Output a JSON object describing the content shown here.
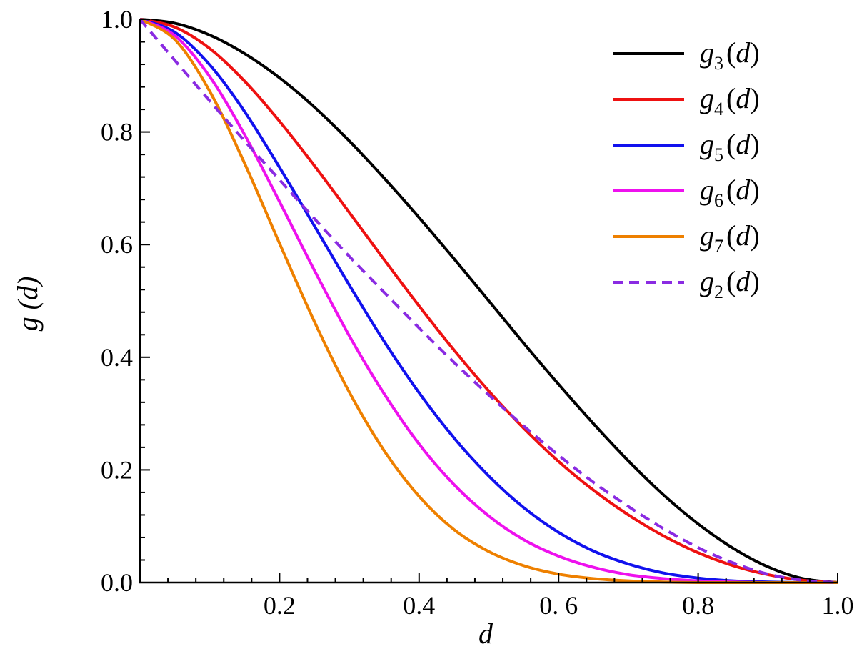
{
  "chart_data": {
    "type": "line",
    "title": "",
    "xlabel": "d",
    "ylabel": "g (d)",
    "xlim": [
      0,
      1
    ],
    "ylim": [
      0,
      1
    ],
    "x_ticks": [
      0.2,
      0.4,
      0.6,
      0.8,
      1.0
    ],
    "x_tick_labels": [
      "0.2",
      "0.4",
      "0. 6",
      "0.8",
      "1.0"
    ],
    "y_ticks": [
      0.0,
      0.2,
      0.4,
      0.6,
      0.8,
      1.0
    ],
    "y_tick_labels": [
      "0.0",
      "0.2",
      "0.4",
      "0.6",
      "0.8",
      "1.0"
    ],
    "grid": false,
    "legend_position": "top-right",
    "x": [
      0.0,
      0.05,
      0.1,
      0.15,
      0.2,
      0.25,
      0.3,
      0.35,
      0.4,
      0.45,
      0.5,
      0.55,
      0.6,
      0.65,
      0.7,
      0.75,
      0.8,
      0.85,
      0.9,
      0.95,
      1.0
    ],
    "series": [
      {
        "name": "g3(d)",
        "label_main": "g",
        "label_sub": "3",
        "label_arg": "(d)",
        "color": "#000000",
        "dash": "solid",
        "values": [
          1.0,
          0.993,
          0.972,
          0.939,
          0.896,
          0.844,
          0.784,
          0.718,
          0.648,
          0.575,
          0.5,
          0.425,
          0.352,
          0.282,
          0.216,
          0.156,
          0.104,
          0.061,
          0.028,
          0.007,
          0.0
        ]
      },
      {
        "name": "g4(d)",
        "label_main": "g",
        "label_sub": "4",
        "label_arg": "(d)",
        "color": "#ee1111",
        "dash": "solid",
        "values": [
          1.0,
          0.986,
          0.948,
          0.89,
          0.819,
          0.74,
          0.657,
          0.573,
          0.491,
          0.413,
          0.34,
          0.274,
          0.215,
          0.164,
          0.12,
          0.083,
          0.053,
          0.03,
          0.014,
          0.004,
          0.0
        ]
      },
      {
        "name": "g5(d)",
        "label_main": "g",
        "label_sub": "5",
        "label_arg": "(d)",
        "color": "#1111ee",
        "dash": "solid",
        "values": [
          1.0,
          0.977,
          0.919,
          0.836,
          0.737,
          0.633,
          0.528,
          0.428,
          0.337,
          0.257,
          0.189,
          0.133,
          0.089,
          0.056,
          0.033,
          0.017,
          0.008,
          0.003,
          0.001,
          0.0,
          0.0
        ]
      },
      {
        "name": "g6(d)",
        "label_main": "g",
        "label_sub": "6",
        "label_arg": "(d)",
        "color": "#ee11ee",
        "dash": "solid",
        "values": [
          1.0,
          0.971,
          0.898,
          0.795,
          0.676,
          0.554,
          0.438,
          0.335,
          0.246,
          0.174,
          0.118,
          0.076,
          0.047,
          0.027,
          0.014,
          0.007,
          0.003,
          0.001,
          0.0,
          0.0,
          0.0
        ]
      },
      {
        "name": "g7(d)",
        "label_main": "g",
        "label_sub": "7",
        "label_arg": "(d)",
        "color": "#ee8000",
        "dash": "solid",
        "values": [
          1.0,
          0.964,
          0.872,
          0.744,
          0.602,
          0.463,
          0.338,
          0.234,
          0.153,
          0.094,
          0.055,
          0.03,
          0.015,
          0.007,
          0.003,
          0.001,
          0.0,
          0.0,
          0.0,
          0.0,
          0.0
        ]
      },
      {
        "name": "g2(d)",
        "label_main": "g",
        "label_sub": "2",
        "label_arg": "(d)",
        "color": "#8a2be2",
        "dash": "dashed",
        "values": [
          1.0,
          0.927,
          0.855,
          0.784,
          0.715,
          0.646,
          0.579,
          0.515,
          0.452,
          0.391,
          0.333,
          0.278,
          0.226,
          0.178,
          0.135,
          0.096,
          0.062,
          0.035,
          0.015,
          0.004,
          0.0
        ]
      }
    ]
  }
}
